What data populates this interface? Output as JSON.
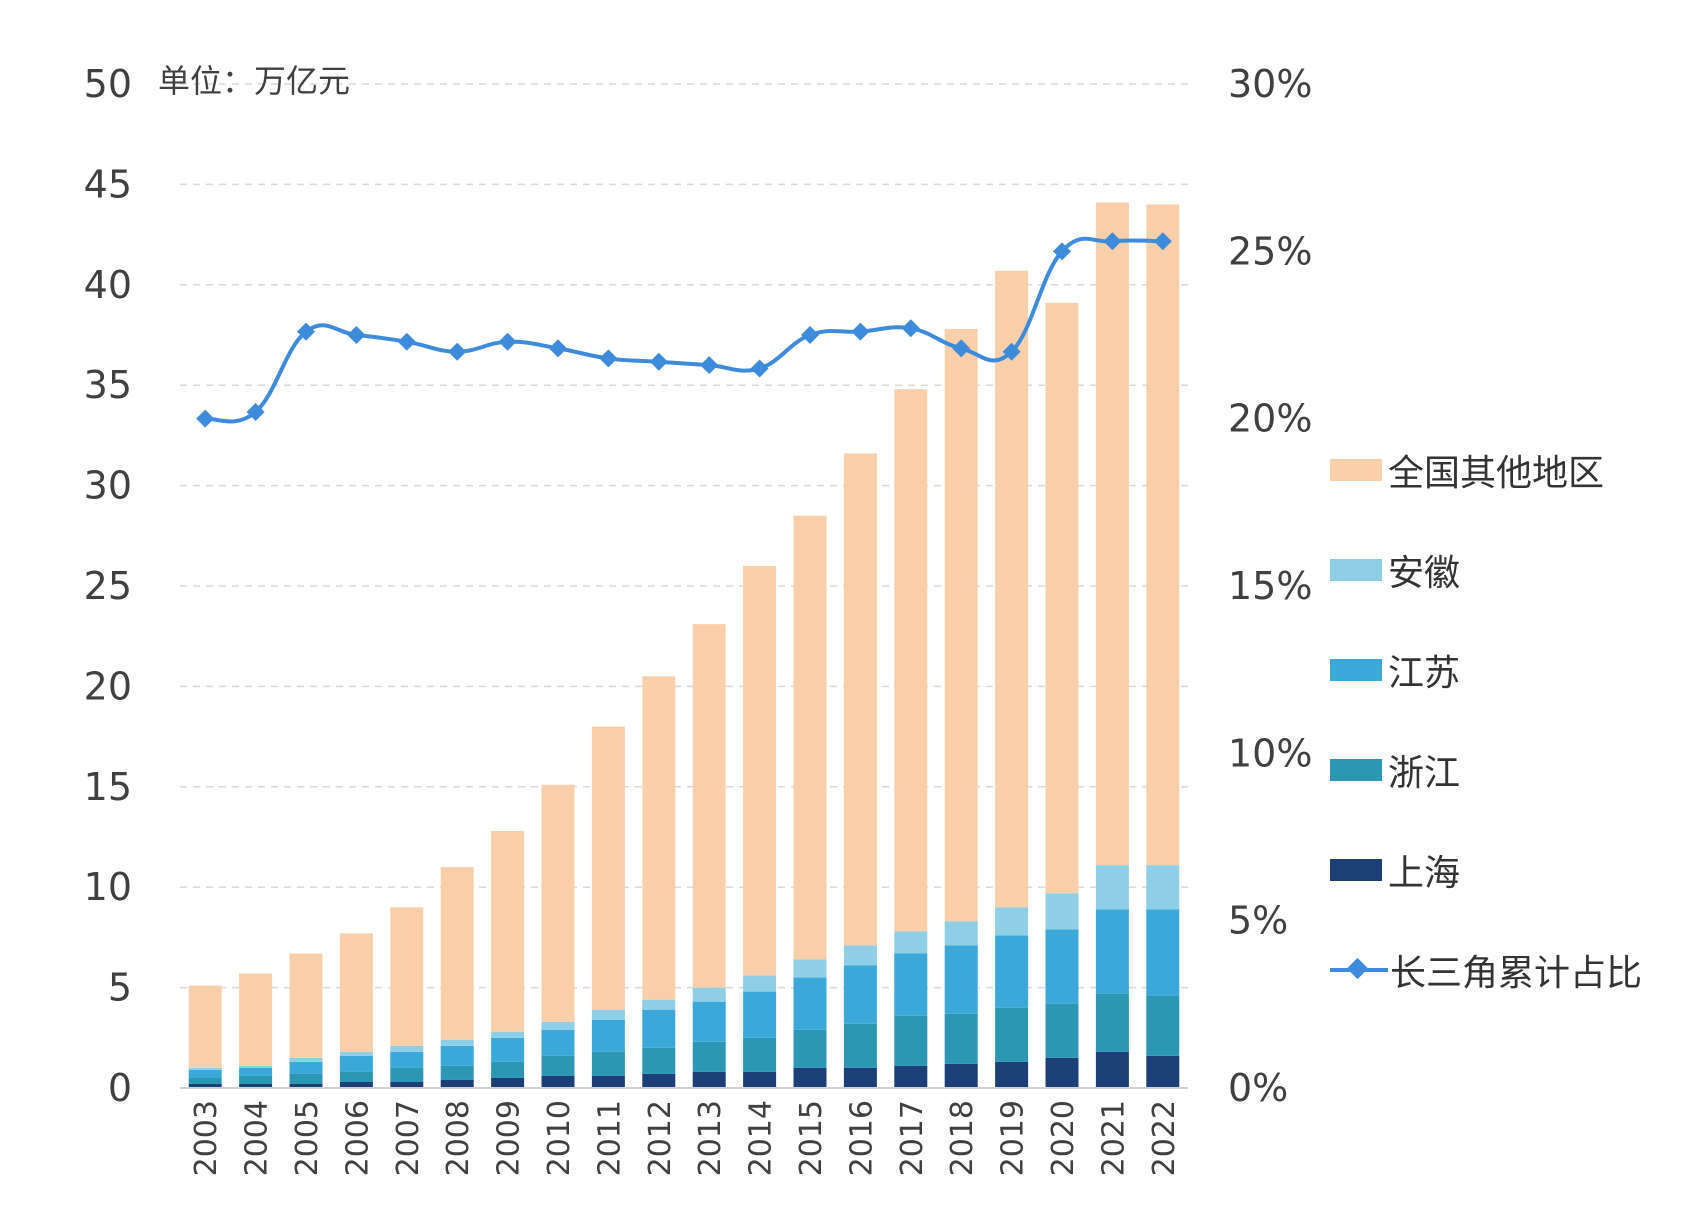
{
  "chart_data": {
    "type": "bar",
    "stacked": true,
    "unit_label": "单位：万亿元",
    "categories": [
      "2003",
      "2004",
      "2005",
      "2006",
      "2007",
      "2008",
      "2009",
      "2010",
      "2011",
      "2012",
      "2013",
      "2014",
      "2015",
      "2016",
      "2017",
      "2018",
      "2019",
      "2020",
      "2021",
      "2022"
    ],
    "y_left": {
      "ylim": [
        0,
        50
      ],
      "ticks": [
        0,
        5,
        10,
        15,
        20,
        25,
        30,
        35,
        40,
        45,
        50
      ]
    },
    "y_right": {
      "ylim": [
        0,
        30
      ],
      "ticks": [
        "0%",
        "5%",
        "10%",
        "15%",
        "20%",
        "25%",
        "30%"
      ]
    },
    "grid": "dashed",
    "legend_position": "right",
    "series": [
      {
        "name": "上海",
        "color": "#1c3f78",
        "values": [
          0.2,
          0.2,
          0.2,
          0.3,
          0.3,
          0.4,
          0.5,
          0.6,
          0.6,
          0.7,
          0.8,
          0.8,
          1.0,
          1.0,
          1.1,
          1.2,
          1.3,
          1.5,
          1.8,
          1.6
        ]
      },
      {
        "name": "浙江",
        "color": "#2c97b3",
        "values": [
          0.3,
          0.4,
          0.5,
          0.5,
          0.7,
          0.7,
          0.8,
          1.0,
          1.2,
          1.3,
          1.5,
          1.7,
          1.9,
          2.2,
          2.5,
          2.5,
          2.7,
          2.7,
          2.9,
          3.0
        ]
      },
      {
        "name": "江苏",
        "color": "#3aa8d9",
        "values": [
          0.4,
          0.4,
          0.6,
          0.8,
          0.8,
          1.0,
          1.2,
          1.3,
          1.6,
          1.9,
          2.0,
          2.3,
          2.6,
          2.9,
          3.1,
          3.4,
          3.6,
          3.7,
          4.2,
          4.3
        ]
      },
      {
        "name": "安徽",
        "color": "#8ecfe6",
        "values": [
          0.1,
          0.1,
          0.2,
          0.2,
          0.3,
          0.3,
          0.3,
          0.4,
          0.5,
          0.5,
          0.7,
          0.8,
          0.9,
          1.0,
          1.1,
          1.2,
          1.4,
          1.8,
          2.2,
          2.2
        ]
      },
      {
        "name": "全国其他地区",
        "color": "#f9cfaa",
        "values": [
          4.1,
          4.6,
          5.2,
          5.9,
          6.9,
          8.6,
          10.0,
          11.8,
          14.1,
          16.1,
          18.1,
          20.4,
          22.1,
          24.5,
          27.0,
          29.5,
          31.7,
          29.4,
          33.0,
          32.9
        ]
      }
    ],
    "line_series": {
      "name": "长三角累计占比",
      "color": "#3d8bdb",
      "axis": "right",
      "values": [
        20.0,
        20.2,
        22.6,
        22.5,
        22.3,
        22.0,
        22.3,
        22.1,
        21.8,
        21.7,
        21.6,
        21.5,
        22.5,
        22.6,
        22.7,
        22.1,
        22.0,
        25.0,
        25.3,
        25.3
      ]
    }
  }
}
